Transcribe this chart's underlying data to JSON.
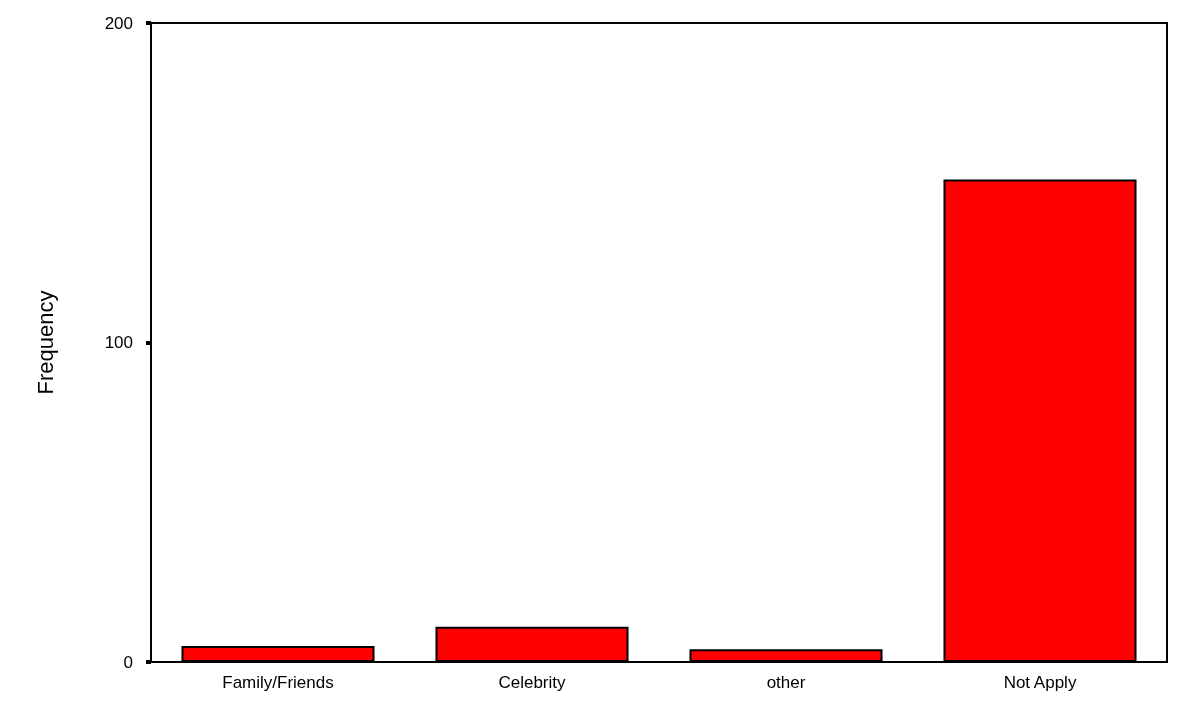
{
  "chart_data": {
    "type": "bar",
    "ylabel": "Frequency",
    "categories": [
      "Family/Friends",
      "Celebrity",
      "other",
      "Not Apply"
    ],
    "values": [
      5,
      11,
      4,
      151
    ],
    "color": "#ff0000",
    "ylim": [
      0,
      200
    ],
    "yticks": [
      0,
      100,
      200
    ],
    "grid": false
  }
}
